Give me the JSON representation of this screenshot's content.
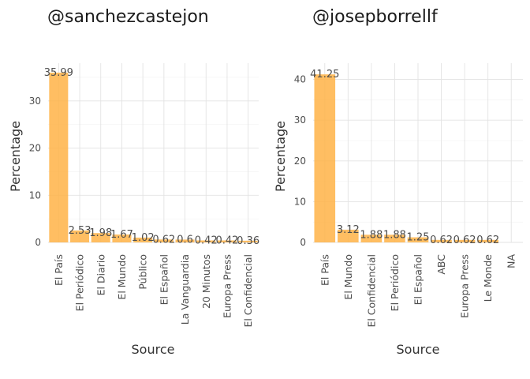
{
  "chart_data": [
    {
      "type": "bar",
      "title": "@sanchezcastejon",
      "xlabel": "Source",
      "ylabel": "Percentage",
      "categories": [
        "El País",
        "El Periódico",
        "El Diario",
        "El Mundo",
        "Público",
        "El Español",
        "La Vanguardia",
        "20 Minutos",
        "Europa Press",
        "El Confidencial"
      ],
      "values": [
        35.99,
        2.53,
        1.98,
        1.67,
        1.02,
        0.62,
        0.6,
        0.42,
        0.42,
        0.36
      ],
      "value_labels": [
        "35.99",
        "2.53",
        "1.98",
        "1.67",
        "1.02",
        "0.62",
        "0.6",
        "0.42",
        "0.42",
        "0.36"
      ],
      "yticks": [
        0,
        10,
        20,
        30
      ],
      "ylim": [
        0,
        38
      ],
      "grid": true,
      "bar_color": "#ffb347"
    },
    {
      "type": "bar",
      "title": "@josepborrellf",
      "xlabel": "Source",
      "ylabel": "Percentage",
      "categories": [
        "El País",
        "El Mundo",
        "El Confidencial",
        "El Periódico",
        "El Español",
        "ABC",
        "Europa Press",
        "Le Monde",
        "NA"
      ],
      "values": [
        41.25,
        3.12,
        1.88,
        1.88,
        1.25,
        0.62,
        0.62,
        0.62,
        null
      ],
      "value_labels": [
        "41.25",
        "3.12",
        "1.88",
        "1.88",
        "1.25",
        "0.62",
        "0.62",
        "0.62",
        ""
      ],
      "yticks": [
        0,
        10,
        20,
        30,
        40
      ],
      "ylim": [
        0,
        44
      ],
      "grid": true,
      "bar_color": "#ffb347"
    }
  ]
}
